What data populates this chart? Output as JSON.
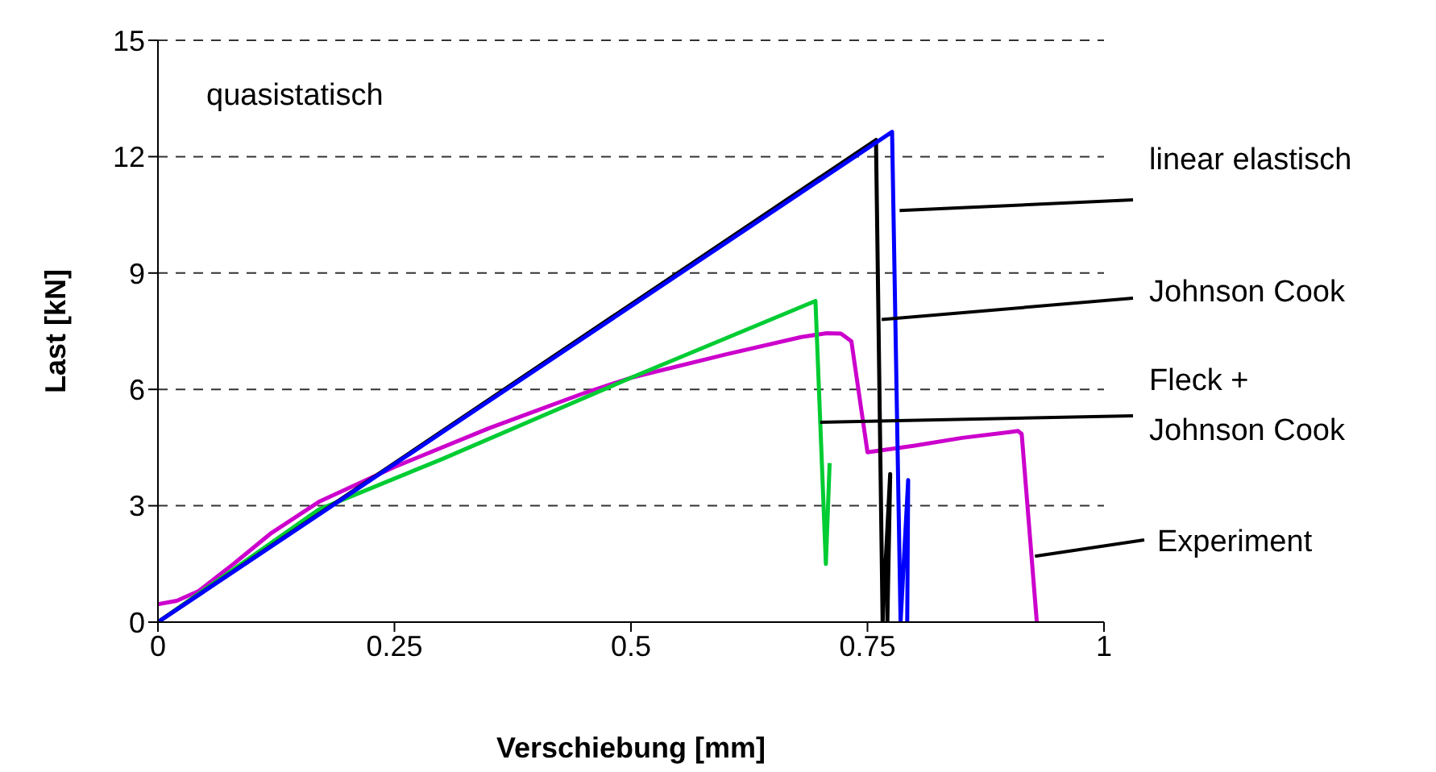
{
  "chart_data": {
    "type": "line",
    "xlabel": "Verschiebung [mm]",
    "ylabel": "Last [kN]",
    "xlim": [
      0,
      1
    ],
    "xticks": [
      0,
      0.25,
      0.5,
      0.75,
      1
    ],
    "ylim": [
      0,
      15
    ],
    "yticks": [
      0,
      3,
      6,
      9,
      12,
      15
    ],
    "grid": "y",
    "legend": false,
    "marker": "none",
    "line_style": "solid",
    "series": [
      {
        "color": "#cc00cc",
        "x": [
          0,
          0.02,
          0.043,
          0.08,
          0.12,
          0.17,
          0.25,
          0.35,
          0.45,
          0.5,
          0.6,
          0.68,
          0.707,
          0.722,
          0.733,
          0.75,
          0.8,
          0.85,
          0.9,
          0.909,
          0.913,
          0.929
        ],
        "values": [
          0.46,
          0.55,
          0.8,
          1.5,
          2.3,
          3.1,
          4.0,
          5.0,
          5.9,
          6.3,
          6.9,
          7.35,
          7.45,
          7.44,
          7.24,
          4.38,
          4.55,
          4.75,
          4.9,
          4.93,
          4.85,
          0
        ]
      },
      {
        "color": "#00cc33",
        "x": [
          0,
          0.17,
          0.3,
          0.5,
          0.695,
          0.706,
          0.71
        ],
        "values": [
          0,
          2.9,
          4.2,
          6.3,
          8.28,
          1.5,
          4.1
        ]
      },
      {
        "color": "#000000",
        "x": [
          0,
          0.759,
          0.766,
          0.774,
          0.771
        ],
        "values": [
          0,
          12.43,
          0,
          3.82,
          0
        ]
      },
      {
        "color": "#0000ff",
        "x": [
          0,
          0.776,
          0.785,
          0.793,
          0.792
        ],
        "values": [
          0,
          12.64,
          0,
          3.66,
          0
        ]
      }
    ],
    "annotations": [
      "quasistatisch",
      {
        "text": "linear elastisch",
        "x": 0.784,
        "y": 10.61
      },
      {
        "text": "Johnson Cook",
        "x": 0.765,
        "y": 7.8
      },
      {
        "text": "Fleck +\nJohnson Cook",
        "x": 0.7,
        "y": 5.15
      },
      {
        "text": "Experiment",
        "x": 0.927,
        "y": 1.7
      }
    ]
  }
}
